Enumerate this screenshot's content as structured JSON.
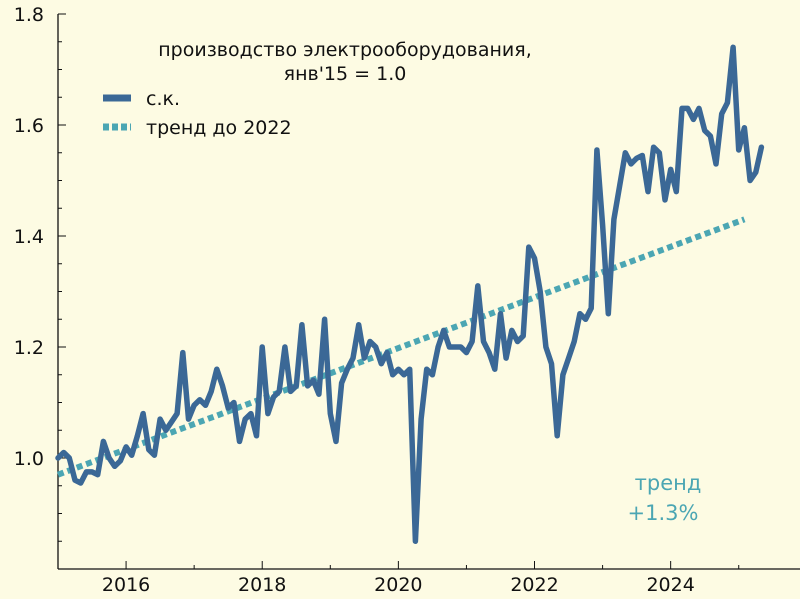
{
  "chart_data": {
    "type": "line",
    "title_line1": "производство электрооборудования,",
    "title_line2": "янв'15 = 1.0",
    "xlabel": "",
    "ylabel": "",
    "xlim": [
      2015.0,
      2025.9
    ],
    "ylim": [
      0.8,
      1.8
    ],
    "x_ticks": [
      2016,
      2018,
      2020,
      2022,
      2024
    ],
    "y_ticks": [
      1.0,
      1.2,
      1.4,
      1.6,
      1.8
    ],
    "x_tick_labels": [
      "2016",
      "2018",
      "2020",
      "2022",
      "2024"
    ],
    "y_tick_labels": [
      "1.0",
      "1.2",
      "1.4",
      "1.6",
      "1.8"
    ],
    "grid": false,
    "legend_position": "top-left",
    "legend": [
      {
        "label": "с.к.",
        "color": "#3b6896",
        "style": "solid"
      },
      {
        "label": "тренд до 2022",
        "color": "#4ba6b3",
        "style": "dotted"
      }
    ],
    "annotation": {
      "line1": "тренд",
      "line2": "+1.3%",
      "color": "#4ba6b3"
    },
    "series": [
      {
        "name": "с.к.",
        "color": "#3b6896",
        "start": "2015-01",
        "values": [
          1.0,
          1.01,
          1.0,
          0.96,
          0.955,
          0.975,
          0.975,
          0.97,
          1.03,
          1.0,
          0.985,
          0.995,
          1.02,
          1.005,
          1.04,
          1.08,
          1.015,
          1.005,
          1.07,
          1.05,
          1.065,
          1.08,
          1.19,
          1.07,
          1.095,
          1.105,
          1.095,
          1.12,
          1.16,
          1.13,
          1.09,
          1.1,
          1.03,
          1.07,
          1.08,
          1.04,
          1.2,
          1.08,
          1.11,
          1.12,
          1.2,
          1.12,
          1.13,
          1.24,
          1.13,
          1.14,
          1.115,
          1.25,
          1.08,
          1.03,
          1.135,
          1.16,
          1.18,
          1.24,
          1.18,
          1.21,
          1.2,
          1.17,
          1.19,
          1.15,
          1.16,
          1.15,
          1.16,
          0.85,
          1.07,
          1.16,
          1.15,
          1.2,
          1.23,
          1.2,
          1.2,
          1.2,
          1.19,
          1.21,
          1.31,
          1.21,
          1.19,
          1.16,
          1.26,
          1.18,
          1.23,
          1.21,
          1.22,
          1.38,
          1.36,
          1.3,
          1.2,
          1.17,
          1.04,
          1.15,
          1.18,
          1.21,
          1.26,
          1.25,
          1.27,
          1.555,
          1.42,
          1.26,
          1.43,
          1.49,
          1.55,
          1.53,
          1.54,
          1.545,
          1.48,
          1.56,
          1.55,
          1.465,
          1.52,
          1.48,
          1.63,
          1.63,
          1.61,
          1.63,
          1.59,
          1.58,
          1.53,
          1.62,
          1.64,
          1.74,
          1.555,
          1.595,
          1.5,
          1.515,
          1.56
        ]
      },
      {
        "name": "тренд до 2022",
        "color": "#4ba6b3",
        "x": [
          "2015-01",
          "2025-02"
        ],
        "values": [
          0.97,
          1.43
        ]
      }
    ]
  }
}
